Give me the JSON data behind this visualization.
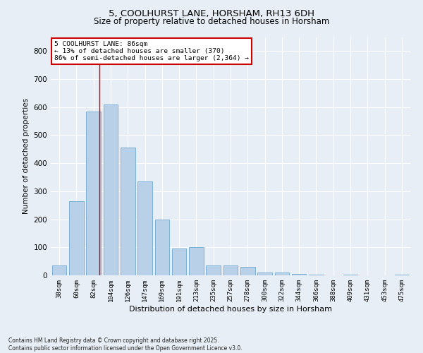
{
  "title1": "5, COOLHURST LANE, HORSHAM, RH13 6DH",
  "title2": "Size of property relative to detached houses in Horsham",
  "xlabel": "Distribution of detached houses by size in Horsham",
  "ylabel": "Number of detached properties",
  "categories": [
    "38sqm",
    "60sqm",
    "82sqm",
    "104sqm",
    "126sqm",
    "147sqm",
    "169sqm",
    "191sqm",
    "213sqm",
    "235sqm",
    "257sqm",
    "278sqm",
    "300sqm",
    "322sqm",
    "344sqm",
    "366sqm",
    "388sqm",
    "409sqm",
    "431sqm",
    "453sqm",
    "475sqm"
  ],
  "values": [
    35,
    265,
    585,
    610,
    455,
    335,
    200,
    95,
    100,
    35,
    35,
    30,
    10,
    10,
    5,
    3,
    0,
    3,
    0,
    0,
    3
  ],
  "bar_color": "#b8d0e8",
  "bar_edge_color": "#7aafd4",
  "bg_color": "#e8eef5",
  "grid_color": "#ffffff",
  "red_line_x": 2.35,
  "annotation_title": "5 COOLHURST LANE: 86sqm",
  "annotation_line1": "← 13% of detached houses are smaller (370)",
  "annotation_line2": "86% of semi-detached houses are larger (2,364) →",
  "annotation_box_color": "#ffffff",
  "annotation_border_color": "#cc0000",
  "footer": "Contains HM Land Registry data © Crown copyright and database right 2025.\nContains public sector information licensed under the Open Government Licence v3.0.",
  "ylim": [
    0,
    850
  ],
  "yticks": [
    0,
    100,
    200,
    300,
    400,
    500,
    600,
    700,
    800
  ]
}
